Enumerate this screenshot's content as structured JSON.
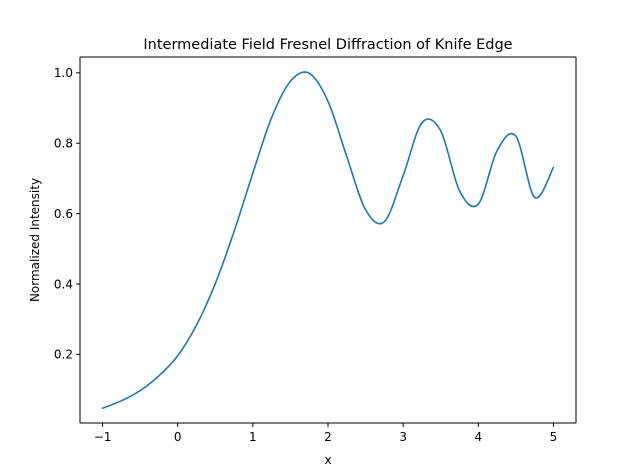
{
  "chart_data": {
    "type": "line",
    "title": "Intermediate Field Fresnel Diffraction of Knife Edge",
    "xlabel": "x",
    "ylabel": "Normalized Intensity",
    "xlim": [
      -1.3,
      5.3
    ],
    "ylim": [
      0.005,
      1.045
    ],
    "xticks": [
      -1,
      0,
      1,
      2,
      3,
      4,
      5
    ],
    "xtick_labels": [
      "−1",
      "0",
      "1",
      "2",
      "3",
      "4",
      "5"
    ],
    "yticks": [
      0.2,
      0.4,
      0.6,
      0.8,
      1.0
    ],
    "ytick_labels": [
      "0.2",
      "0.4",
      "0.6",
      "0.8",
      "1.0"
    ],
    "grid": false,
    "series": [
      {
        "color": "#1f77b4",
        "x": [
          -1.0,
          -0.75,
          -0.5,
          -0.25,
          0.0,
          0.25,
          0.5,
          0.75,
          1.0,
          1.25,
          1.5,
          1.75,
          2.0,
          2.25,
          2.5,
          2.75,
          3.0,
          3.25,
          3.5,
          3.75,
          4.0,
          4.25,
          4.5,
          4.75,
          5.0
        ],
        "y": [
          0.047,
          0.068,
          0.097,
          0.139,
          0.196,
          0.283,
          0.401,
          0.549,
          0.715,
          0.873,
          0.976,
          0.999,
          0.919,
          0.762,
          0.611,
          0.577,
          0.708,
          0.858,
          0.835,
          0.665,
          0.627,
          0.779,
          0.82,
          0.646,
          0.731
        ]
      }
    ]
  }
}
